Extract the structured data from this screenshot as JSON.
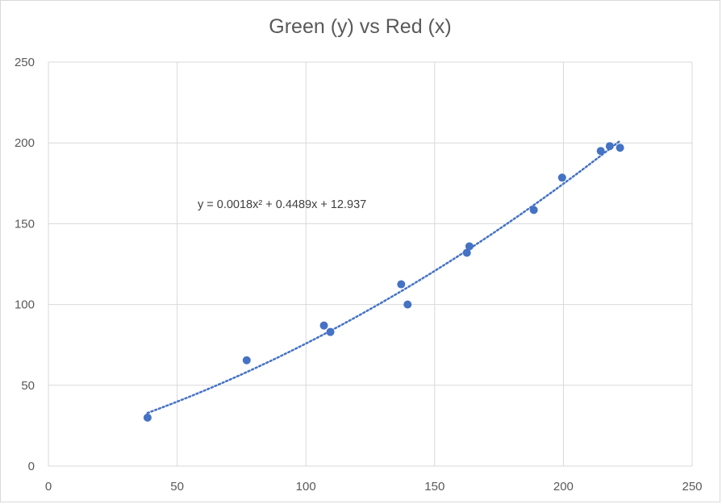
{
  "chart_data": {
    "type": "scatter",
    "title": "Green (y) vs Red (x)",
    "xlabel": "",
    "ylabel": "",
    "xlim": [
      0,
      250
    ],
    "ylim": [
      0,
      250
    ],
    "x_ticks": [
      0,
      50,
      100,
      150,
      200,
      250
    ],
    "y_ticks": [
      0,
      50,
      100,
      150,
      200,
      250
    ],
    "grid": true,
    "legend": "none",
    "series": [
      {
        "color": "#4472C4",
        "points": [
          {
            "x": 38.5,
            "y": 30
          },
          {
            "x": 77,
            "y": 65.5
          },
          {
            "x": 107,
            "y": 87
          },
          {
            "x": 109.5,
            "y": 83
          },
          {
            "x": 137,
            "y": 112.5
          },
          {
            "x": 139.5,
            "y": 100
          },
          {
            "x": 162.5,
            "y": 132
          },
          {
            "x": 163.5,
            "y": 136
          },
          {
            "x": 188.5,
            "y": 158.5
          },
          {
            "x": 199.5,
            "y": 178.5
          },
          {
            "x": 214.5,
            "y": 195
          },
          {
            "x": 218,
            "y": 198
          },
          {
            "x": 222,
            "y": 197
          }
        ],
        "trendline": {
          "type": "polynomial",
          "order": 2,
          "coefficients": [
            0.0018,
            0.4489,
            12.937
          ],
          "x_range": [
            38.5,
            222
          ],
          "style": "dotted",
          "color": "#4472C4"
        }
      }
    ],
    "annotations": [
      {
        "text": "y = 0.0018x² + 0.4489x + 12.937"
      }
    ]
  }
}
